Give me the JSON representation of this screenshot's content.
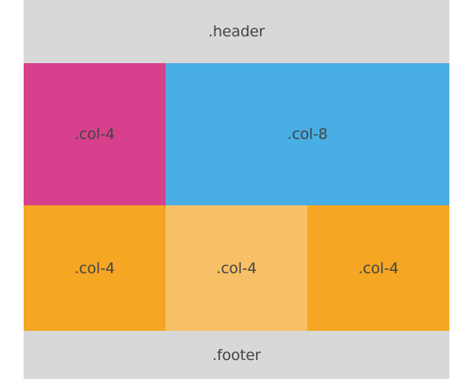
{
  "header": {
    "label": ".header",
    "color": "#d8d8d8"
  },
  "row1": [
    {
      "label": ".col-4",
      "color": "#d6408c"
    },
    {
      "label": ".col-8",
      "color": "#49aee3"
    }
  ],
  "row2": [
    {
      "label": ".col-4",
      "color": "#f5a623"
    },
    {
      "label": ".col-4",
      "color": "#f7c066"
    },
    {
      "label": ".col-4",
      "color": "#f5a623"
    }
  ],
  "footer": {
    "label": ".footer",
    "color": "#d8d8d8"
  }
}
